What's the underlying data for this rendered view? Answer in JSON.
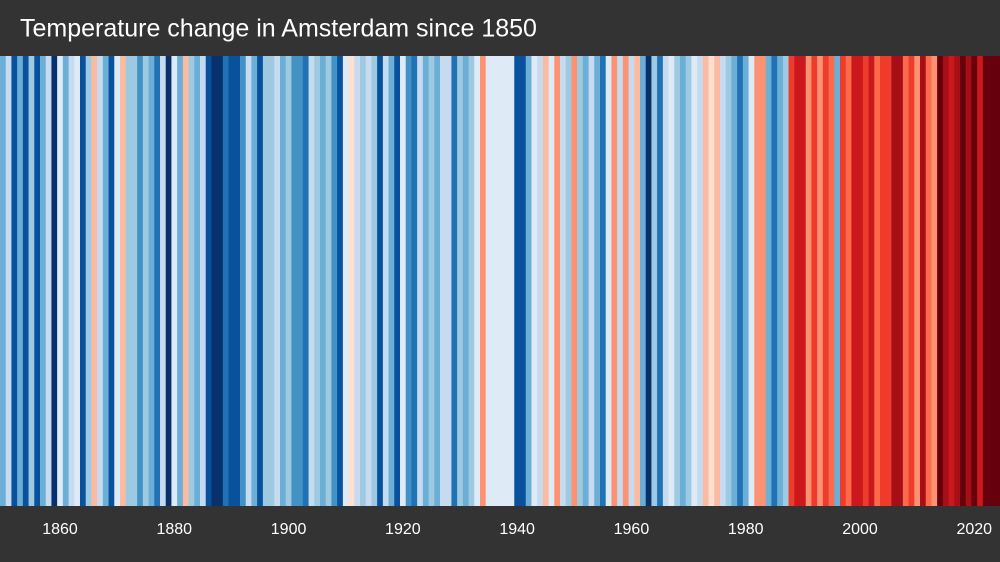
{
  "chart_data": {
    "type": "stripes",
    "title": "Temperature change in Amsterdam since 1850",
    "x": [
      1850,
      1851,
      1852,
      1853,
      1854,
      1855,
      1856,
      1857,
      1858,
      1859,
      1860,
      1861,
      1862,
      1863,
      1864,
      1865,
      1866,
      1867,
      1868,
      1869,
      1870,
      1871,
      1872,
      1873,
      1874,
      1875,
      1876,
      1877,
      1878,
      1879,
      1880,
      1881,
      1882,
      1883,
      1884,
      1885,
      1886,
      1887,
      1888,
      1889,
      1890,
      1891,
      1892,
      1893,
      1894,
      1895,
      1896,
      1897,
      1898,
      1899,
      1900,
      1901,
      1902,
      1903,
      1904,
      1905,
      1906,
      1907,
      1908,
      1909,
      1910,
      1911,
      1912,
      1913,
      1914,
      1915,
      1916,
      1917,
      1918,
      1919,
      1920,
      1921,
      1922,
      1923,
      1924,
      1925,
      1926,
      1927,
      1928,
      1929,
      1930,
      1931,
      1932,
      1933,
      1934,
      1935,
      1936,
      1937,
      1938,
      1939,
      1940,
      1941,
      1942,
      1943,
      1944,
      1945,
      1946,
      1947,
      1948,
      1949,
      1950,
      1951,
      1952,
      1953,
      1954,
      1955,
      1956,
      1957,
      1958,
      1959,
      1960,
      1961,
      1962,
      1963,
      1964,
      1965,
      1966,
      1967,
      1968,
      1969,
      1970,
      1971,
      1972,
      1973,
      1974,
      1975,
      1976,
      1977,
      1978,
      1979,
      1980,
      1981,
      1982,
      1983,
      1984,
      1985,
      1986,
      1987,
      1988,
      1989,
      1990,
      1991,
      1992,
      1993,
      1994,
      1995,
      1996,
      1997,
      1998,
      1999,
      2000,
      2001,
      2002,
      2003,
      2004,
      2005,
      2006,
      2007,
      2008,
      2009,
      2010,
      2011,
      2012,
      2013,
      2014,
      2015,
      2016,
      2017,
      2018,
      2019,
      2020,
      2021,
      2022,
      2023,
      2024
    ],
    "values": [
      -0.5,
      -0.15,
      -0.8,
      -0.5,
      -0.85,
      -0.3,
      -0.85,
      -0.5,
      -0.2,
      -0.9,
      -0.1,
      -0.5,
      -0.25,
      -0.1,
      -0.8,
      -0.3,
      0.15,
      -0.2,
      -0.5,
      -0.85,
      -0.1,
      0.2,
      -0.3,
      -0.35,
      -0.55,
      -0.3,
      -0.5,
      -0.75,
      -0.25,
      -0.9,
      -0.1,
      -0.5,
      0.15,
      -0.3,
      -0.5,
      -0.2,
      -0.8,
      -1,
      -1,
      -0.7,
      -0.8,
      -0.8,
      -0.6,
      -0.25,
      -0.5,
      -0.85,
      -0.3,
      -0.3,
      -0.15,
      -0.5,
      -0.3,
      -0.6,
      -0.55,
      -0.75,
      -0.25,
      -0.3,
      -0.5,
      -0.3,
      -0.6,
      -0.85,
      -0.05,
      0.1,
      -0.25,
      -0.3,
      -0.2,
      -0.35,
      -0.8,
      -0.2,
      -0.5,
      -0.8,
      -0.1,
      -0.6,
      -0.7,
      -0.25,
      -0.5,
      -0.3,
      -0.5,
      -0.25,
      -0.15,
      -0.75,
      -0.3,
      -0.5,
      -0.3,
      -0.05,
      0.35,
      -0.05,
      -0.05,
      -0.05,
      -0.05,
      -0.05,
      -0.8,
      -0.85,
      -0.5,
      -0.1,
      -0.25,
      0.2,
      -0.1,
      0.35,
      -0.25,
      -0.3,
      0.25,
      -0.3,
      -0.5,
      -0.2,
      -0.5,
      -0.75,
      -0.1,
      0.3,
      -0.2,
      0.35,
      -0.2,
      0.2,
      -0.5,
      -1,
      -0.3,
      -0.7,
      -0.2,
      -0.1,
      -0.3,
      -0.5,
      -0.3,
      -0.1,
      -0.25,
      0.15,
      0.05,
      0.2,
      -0.2,
      -0.3,
      -0.5,
      -0.75,
      -0.5,
      -0.1,
      0.3,
      0.25,
      -0.5,
      -0.7,
      -0.5,
      -0.3,
      0.6,
      0.7,
      0.7,
      0.35,
      0.55,
      0.3,
      0.6,
      0.4,
      -0.5,
      0.55,
      0.45,
      0.65,
      0.65,
      0.6,
      0.7,
      0.45,
      0.55,
      0.6,
      0.8,
      0.75,
      0.45,
      0.6,
      0.3,
      0.75,
      0.45,
      0.3,
      0.95,
      0.75,
      0.7,
      0.75,
      0.9,
      0.8,
      0.95,
      0.7,
      1,
      1,
      1
    ],
    "xlim": [
      1849.5,
      2024.5
    ],
    "xticks": [
      1860,
      1880,
      1900,
      1920,
      1940,
      1960,
      1980,
      2000,
      2020
    ],
    "clim": [
      -1,
      1
    ],
    "colors": [
      "#08306b",
      "#08519c",
      "#2171b5",
      "#4292c6",
      "#6baed6",
      "#9ecae1",
      "#c6dbef",
      "#deebf7",
      "#fee0d2",
      "#fcbba1",
      "#fc9272",
      "#fb6a4a",
      "#ef3b2c",
      "#cb181d",
      "#a50f15",
      "#67000d"
    ]
  }
}
